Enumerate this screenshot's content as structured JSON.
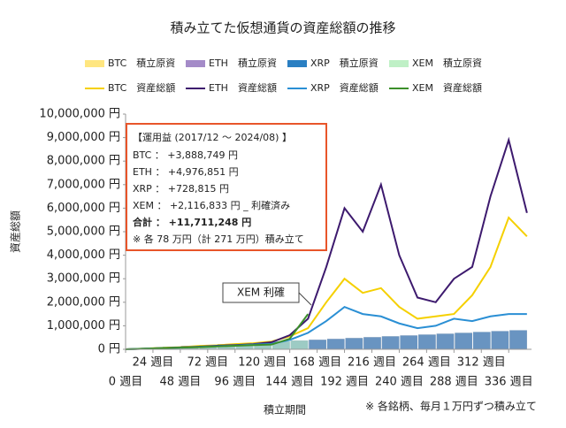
{
  "chart_data": {
    "type": "combo",
    "title": "積み立てた仮想通貨の資産総額の推移",
    "y_axis_label": "資産総額",
    "x_axis_label": "積立期間",
    "footnote": "※ 各銘柄、毎月１万円ずつ積み立て",
    "x": [
      0,
      16,
      32,
      48,
      64,
      80,
      96,
      112,
      128,
      144,
      160,
      176,
      192,
      208,
      224,
      240,
      256,
      272,
      288,
      304,
      320,
      336,
      352
    ],
    "xlim": [
      0,
      356
    ],
    "xticks": [
      {
        "value": 0,
        "label": "0 週目"
      },
      {
        "value": 24,
        "label": "24 週目"
      },
      {
        "value": 48,
        "label": "48 週目"
      },
      {
        "value": 72,
        "label": "72 週目"
      },
      {
        "value": 96,
        "label": "96 週目"
      },
      {
        "value": 120,
        "label": "120 週目"
      },
      {
        "value": 144,
        "label": "144 週目"
      },
      {
        "value": 168,
        "label": "168 週目"
      },
      {
        "value": 192,
        "label": "192 週目"
      },
      {
        "value": 216,
        "label": "216 週目"
      },
      {
        "value": 240,
        "label": "240 週目"
      },
      {
        "value": 264,
        "label": "264 週目"
      },
      {
        "value": 288,
        "label": "288 週目"
      },
      {
        "value": 312,
        "label": "312 週目"
      },
      {
        "value": 336,
        "label": "336 週目"
      }
    ],
    "ylim": [
      0,
      10000000
    ],
    "yticks": [
      {
        "value": 0,
        "label": "0 円"
      },
      {
        "value": 1000000,
        "label": "1,000,000 円"
      },
      {
        "value": 2000000,
        "label": "2,000,000 円"
      },
      {
        "value": 3000000,
        "label": "3,000,000 円"
      },
      {
        "value": 4000000,
        "label": "4,000,000 円"
      },
      {
        "value": 5000000,
        "label": "5,000,000 円"
      },
      {
        "value": 6000000,
        "label": "6,000,000 円"
      },
      {
        "value": 7000000,
        "label": "7,000,000 円"
      },
      {
        "value": 8000000,
        "label": "8,000,000 円"
      },
      {
        "value": 9000000,
        "label": "9,000,000 円"
      },
      {
        "value": 10000000,
        "label": "10,000,000 円"
      }
    ],
    "series": [
      {
        "name": "BTC　積立原資",
        "type": "bar",
        "color": "#ffe680",
        "values": [
          0,
          36800,
          73600,
          110400,
          147200,
          184000,
          220800,
          257600,
          294400,
          331200,
          368000,
          404800,
          441600,
          478400,
          515200,
          552000,
          588800,
          625600,
          662400,
          699200,
          736000,
          772800,
          809600
        ]
      },
      {
        "name": "ETH　積立原資",
        "type": "bar",
        "color": "#a48bc8",
        "values": [
          0,
          36800,
          73600,
          110400,
          147200,
          184000,
          220800,
          257600,
          294400,
          331200,
          368000,
          404800,
          441600,
          478400,
          515200,
          552000,
          588800,
          625600,
          662400,
          699200,
          736000,
          772800,
          809600
        ]
      },
      {
        "name": "XRP　積立原資",
        "type": "bar",
        "color": "#2a7fc2",
        "values": [
          0,
          36800,
          73600,
          110400,
          147200,
          184000,
          220800,
          257600,
          294400,
          331200,
          368000,
          404800,
          441600,
          478400,
          515200,
          552000,
          588800,
          625600,
          662400,
          699200,
          736000,
          772800,
          809600
        ]
      },
      {
        "name": "XEM　積立原資",
        "type": "bar",
        "color": "#bff0c6",
        "values": [
          0,
          36800,
          73600,
          110400,
          147200,
          184000,
          220800,
          257600,
          294400,
          331200,
          368000,
          null,
          null,
          null,
          null,
          null,
          null,
          null,
          null,
          null,
          null,
          null,
          null
        ]
      },
      {
        "name": "BTC　資産総額",
        "type": "line",
        "color": "#f5d000",
        "values": [
          0,
          30000,
          60000,
          90000,
          140000,
          170000,
          220000,
          260000,
          330000,
          550000,
          900000,
          2000000,
          3000000,
          2400000,
          2600000,
          1800000,
          1300000,
          1400000,
          1500000,
          2300000,
          3500000,
          5600000,
          4800000
        ]
      },
      {
        "name": "ETH　資産総額",
        "type": "line",
        "color": "#3d1a6e",
        "values": [
          0,
          25000,
          50000,
          80000,
          110000,
          150000,
          180000,
          220000,
          300000,
          600000,
          1300000,
          3500000,
          6000000,
          5000000,
          7000000,
          4000000,
          2200000,
          2000000,
          3000000,
          3500000,
          6500000,
          8900000,
          5800000
        ]
      },
      {
        "name": "XRP　資産総額",
        "type": "line",
        "color": "#2a8fd4",
        "values": [
          0,
          30000,
          45000,
          70000,
          100000,
          130000,
          160000,
          200000,
          230000,
          400000,
          700000,
          1200000,
          1800000,
          1500000,
          1400000,
          1100000,
          900000,
          1000000,
          1300000,
          1200000,
          1400000,
          1500000,
          1500000
        ]
      },
      {
        "name": "XEM　資産総額",
        "type": "line",
        "color": "#3c8f2a",
        "values": [
          0,
          25000,
          50000,
          70000,
          90000,
          120000,
          150000,
          180000,
          200000,
          450000,
          1500000,
          null,
          null,
          null,
          null,
          null,
          null,
          null,
          null,
          null,
          null,
          null,
          null
        ]
      }
    ],
    "annotation": {
      "title": "【運用益 (2017/12 ～ 2024/08) 】",
      "lines": [
        "BTC ： +3,888,749 円",
        "ETH ： +4,976,851 円",
        "XRP ： +728,815 円",
        "XEM ： +2,116,833 円 _ 利確済み",
        "合計 ： +11,711,248 円",
        "※ 各 78 万円（計 271 万円）積み立て"
      ]
    },
    "callout": "XEM 利確"
  }
}
